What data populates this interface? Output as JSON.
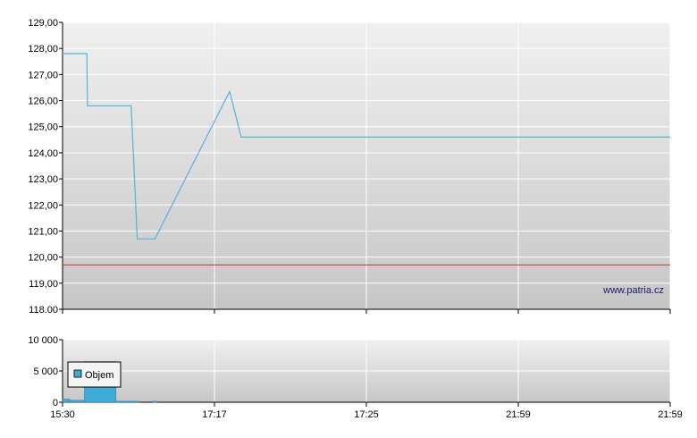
{
  "watermark": "www.patria.cz",
  "colors": {
    "price_line": "#5ab0d8",
    "reference_line": "#cc3333",
    "volume_bar": "#3fa9d8",
    "grid": "#ffffff"
  },
  "chart_data": [
    {
      "type": "line",
      "title": "",
      "ylim": [
        118,
        129
      ],
      "y_ticks": [
        "118.00",
        "119,00",
        "120,00",
        "121,00",
        "122,00",
        "123,00",
        "124,00",
        "125,00",
        "126,00",
        "127,00",
        "128,00",
        "129,00"
      ],
      "y_tick_values": [
        118,
        119,
        120,
        121,
        122,
        123,
        124,
        125,
        126,
        127,
        128,
        129
      ],
      "x_ticks": [
        "15:30",
        "17:17",
        "17:25",
        "21:59",
        "21:59"
      ],
      "xlim": [
        0,
        100
      ],
      "x_tick_positions": [
        0,
        25,
        50,
        75,
        100
      ],
      "reference_value": 119.7,
      "series": [
        {
          "values": [
            [
              0,
              127.8
            ],
            [
              4,
              127.8
            ],
            [
              4.1,
              125.8
            ],
            [
              11.3,
              125.8
            ],
            [
              12.3,
              120.7
            ],
            [
              15.2,
              120.7
            ],
            [
              27.5,
              126.35
            ],
            [
              29.4,
              124.6
            ],
            [
              100,
              124.6
            ]
          ]
        }
      ],
      "grid": true
    },
    {
      "type": "bar",
      "ylim": [
        0,
        10000
      ],
      "y_ticks": [
        "0",
        "5 000",
        "10 000"
      ],
      "y_tick_values": [
        0,
        5000,
        10000
      ],
      "x_ticks": [
        "15:30",
        "17:17",
        "17:25",
        "21:59",
        "21:59"
      ],
      "xlim": [
        0,
        100
      ],
      "x_tick_positions": [
        0,
        25,
        50,
        75,
        100
      ],
      "legend": {
        "label": "Objem",
        "placement": "top-left"
      },
      "bars": [
        {
          "x0": 0,
          "x1": 1.2,
          "value": 500
        },
        {
          "x0": 1.2,
          "x1": 3.5,
          "value": 300
        },
        {
          "x0": 3.6,
          "x1": 8.8,
          "value": 6500
        },
        {
          "x0": 8.8,
          "x1": 12.6,
          "value": 150
        },
        {
          "x0": 14.8,
          "x1": 15.6,
          "value": 150
        }
      ],
      "grid": true
    }
  ]
}
